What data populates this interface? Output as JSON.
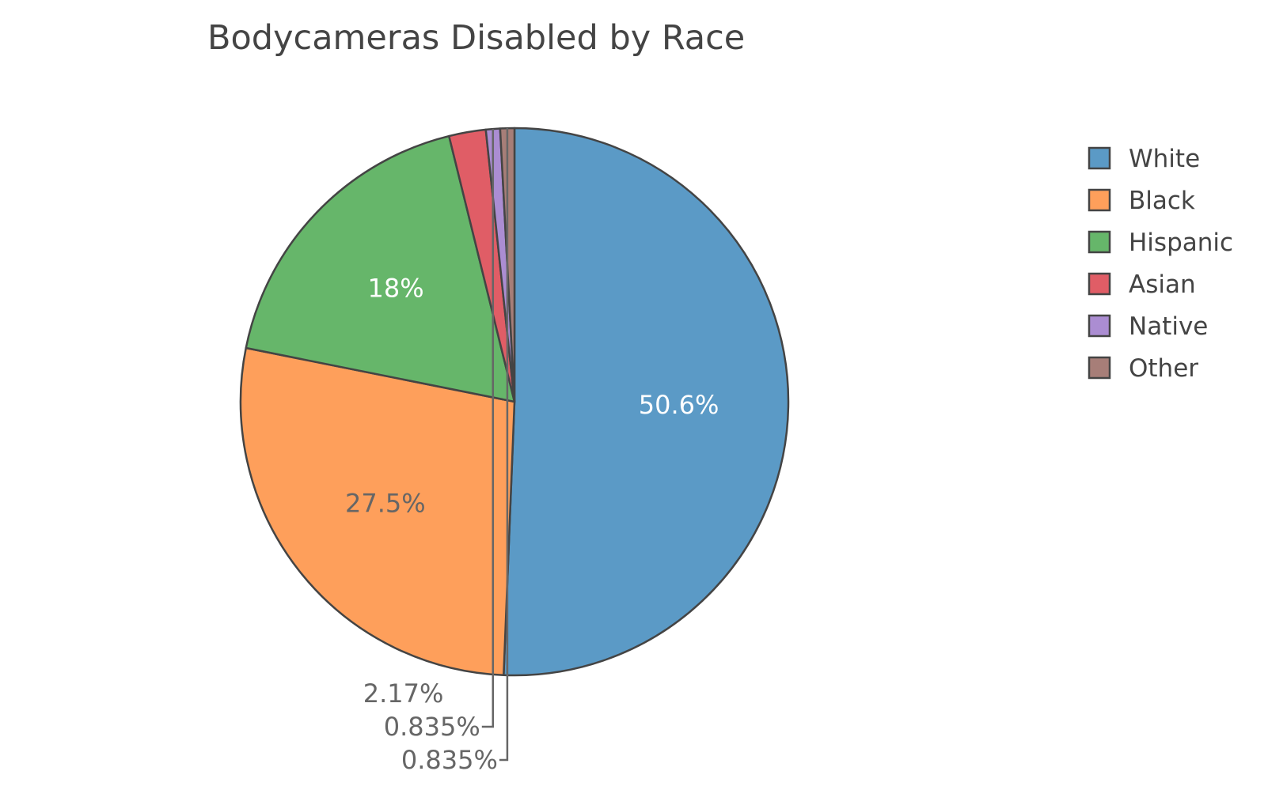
{
  "chart_data": {
    "type": "pie",
    "title": "Bodycameras Disabled by Race",
    "categories": [
      "White",
      "Black",
      "Hispanic",
      "Asian",
      "Native",
      "Other"
    ],
    "values": [
      50.6,
      27.5,
      18.0,
      2.17,
      0.835,
      0.835
    ],
    "value_labels": [
      "50.6%",
      "27.5%",
      "18%",
      "2.17%",
      "0.835%",
      "0.835%"
    ],
    "colors": [
      "#5b9ac6",
      "#fe9f5b",
      "#66b66a",
      "#e05d66",
      "#ab8dd2",
      "#a77e78"
    ],
    "label_colors": [
      "#ffffff",
      "#666666",
      "#ffffff",
      "#666666",
      "#666666",
      "#666666"
    ],
    "direction": "clockwise",
    "start": "12 o'clock",
    "legend_position": "right"
  }
}
